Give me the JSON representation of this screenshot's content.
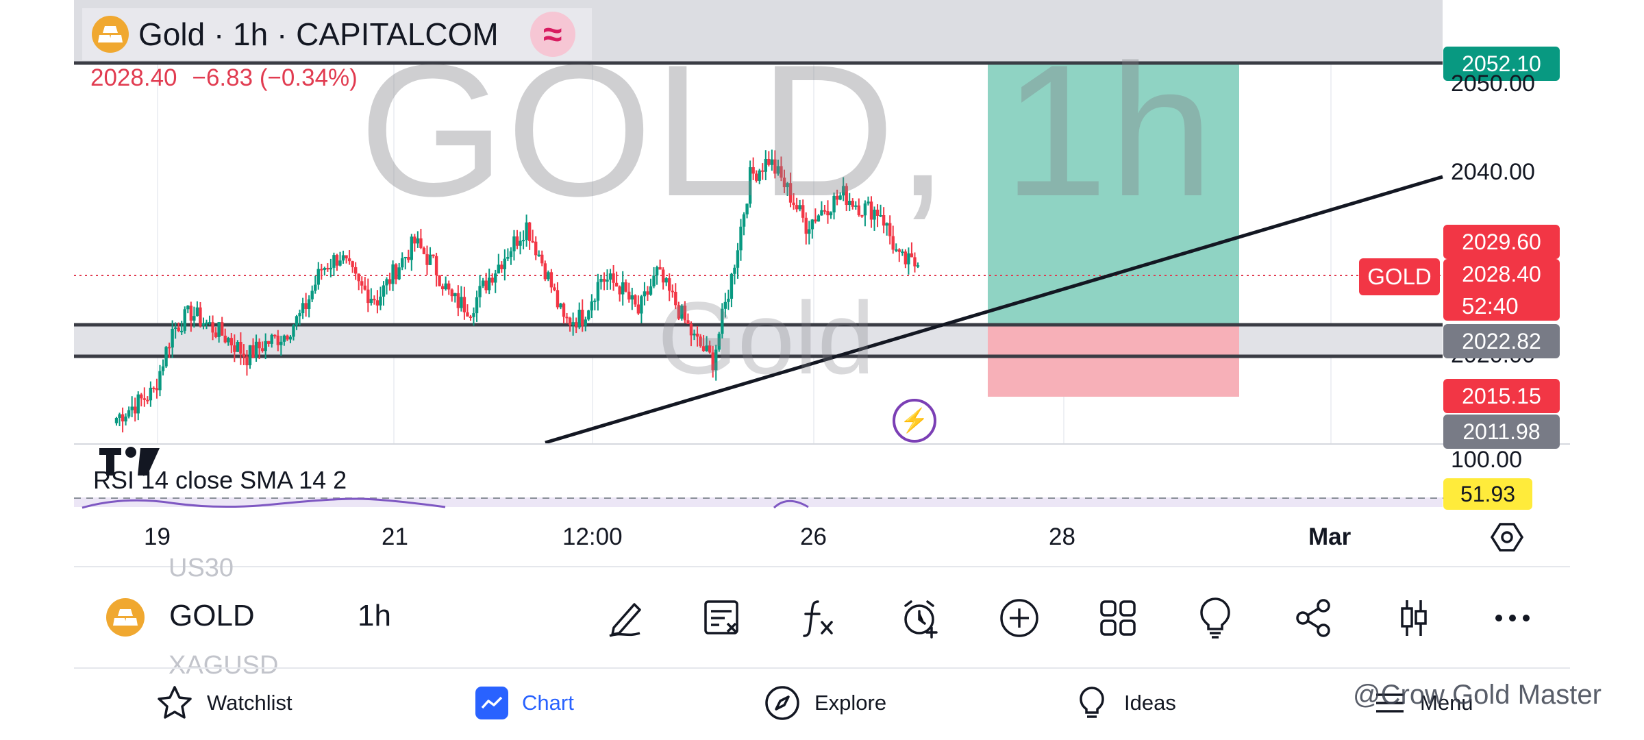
{
  "header": {
    "title": "Gold · 1h · CAPITALCOM",
    "wave_symbol": "≈",
    "last_price": "2028.40",
    "change": "−6.83",
    "change_pct": "(−0.34%)"
  },
  "watermark": {
    "big": "GOLD, 1h",
    "small": "Gold"
  },
  "price_scale": {
    "tp_label": "2052.10",
    "grid_labels": [
      "2050.00",
      "2040.00",
      "2020.00"
    ],
    "high_label": "2029.60",
    "last_label": "2028.40",
    "countdown": "52:40",
    "zone_label": "2022.82",
    "stop_label": "2015.15",
    "low_label": "2011.98",
    "symbol_tag": "GOLD"
  },
  "colors": {
    "up": "#089981",
    "down": "#f23645",
    "tp_zone": "#7fcebb",
    "sl_zone": "#f7a6b0",
    "zone_band": "#d9dbe1",
    "rsi_value_bg": "#ffeb3b"
  },
  "rsi": {
    "title": "RSI 14 close SMA 14 2",
    "upper": "100.00",
    "value": "51.93"
  },
  "time_axis": {
    "labels": [
      "19",
      "21",
      "12:00",
      "26",
      "28",
      "Mar"
    ],
    "bold_label": "Mar"
  },
  "symbol_bar": {
    "above": "US30",
    "symbol": "GOLD",
    "timeframe": "1h",
    "below": "XAGUSD"
  },
  "toolbar": {
    "icons": [
      "pencil-icon",
      "object-tree-icon",
      "indicators-icon",
      "alert-icon",
      "add-icon",
      "layouts-icon",
      "ideas-bulb-icon",
      "share-icon",
      "candle-type-icon",
      "more-icon"
    ]
  },
  "nav": {
    "watchlist": "Watchlist",
    "chart": "Chart",
    "explore": "Explore",
    "ideas": "Ideas",
    "menu": "Menu"
  },
  "credit": "@Crow Gold Master",
  "chart_data": {
    "type": "candlestick",
    "instrument": "Gold",
    "interval": "1h",
    "x": [
      "19",
      "21",
      "12:00",
      "26",
      "28",
      "Mar"
    ],
    "ylim": [
      2008,
      2054
    ],
    "close_path": [
      2011.0,
      2012.5,
      2014.0,
      2021.0,
      2023.0,
      2021.5,
      2020.0,
      2018.0,
      2019.5,
      2020.5,
      2023.0,
      2028.0,
      2029.5,
      2026.0,
      2024.5,
      2028.0,
      2031.0,
      2028.5,
      2024.5,
      2023.5,
      2027.0,
      2030.0,
      2033.0,
      2028.0,
      2022.0,
      2022.5,
      2027.0,
      2026.0,
      2023.0,
      2027.5,
      2024.0,
      2020.0,
      2017.5,
      2027.0,
      2038.5,
      2040.5,
      2037.0,
      2033.0,
      2035.0,
      2036.5,
      2035.0,
      2034.5,
      2029.0,
      2028.4
    ],
    "current_price": 2028.4,
    "horizontal_levels": [
      2052.1,
      2022.82,
      2020.0
    ],
    "long_position": {
      "entry": 2022.82,
      "target": 2052.1,
      "stop": 2015.15
    },
    "trendline": {
      "from": [
        24,
        2010.0
      ],
      "to": [
        41,
        2040.0
      ]
    }
  }
}
